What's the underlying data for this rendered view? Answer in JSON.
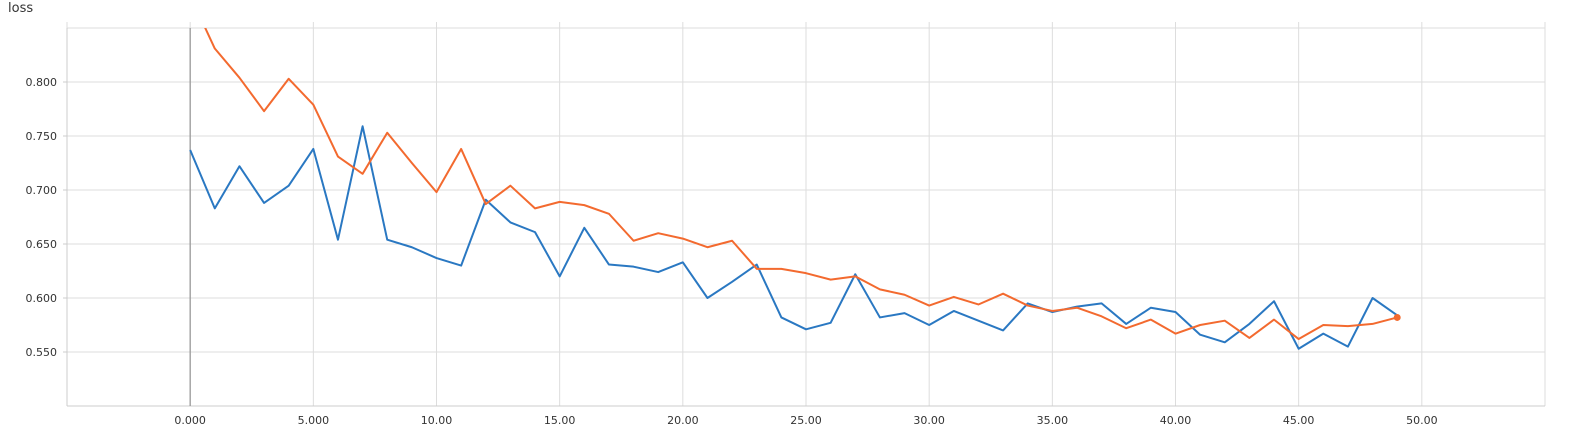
{
  "chart_data": {
    "type": "line",
    "title": "loss",
    "xlabel": "",
    "ylabel": "",
    "xlim": [
      -5,
      55
    ],
    "ylim": [
      0.5,
      0.85
    ],
    "x_ticks": [
      "0.000",
      "5.000",
      "10.00",
      "15.00",
      "20.00",
      "25.00",
      "30.00",
      "35.00",
      "40.00",
      "45.00",
      "50.00"
    ],
    "y_ticks": [
      "0.800",
      "0.750",
      "0.700",
      "0.650",
      "0.600",
      "0.550"
    ],
    "grid": true,
    "legend": "none",
    "colors": {
      "series_blue": "#2a78c2",
      "series_orange": "#f36a2f",
      "grid": "#dddddd",
      "axis": "#999999"
    },
    "x": [
      0,
      1,
      2,
      3,
      4,
      5,
      6,
      7,
      8,
      9,
      10,
      11,
      12,
      13,
      14,
      15,
      16,
      17,
      18,
      19,
      20,
      21,
      22,
      23,
      24,
      25,
      26,
      27,
      28,
      29,
      30,
      31,
      32,
      33,
      34,
      35,
      36,
      37,
      38,
      39,
      40,
      41,
      42,
      43,
      44,
      45,
      46,
      47,
      48,
      49
    ],
    "series": [
      {
        "color": "#2a78c2",
        "values": [
          0.737,
          0.683,
          0.722,
          0.688,
          0.704,
          0.738,
          0.654,
          0.759,
          0.654,
          0.647,
          0.637,
          0.63,
          0.691,
          0.67,
          0.661,
          0.62,
          0.665,
          0.631,
          0.629,
          0.624,
          0.633,
          0.6,
          0.615,
          0.631,
          0.582,
          0.571,
          0.577,
          0.622,
          0.582,
          0.586,
          0.575,
          0.588,
          0.579,
          0.57,
          0.595,
          0.587,
          0.592,
          0.595,
          0.576,
          0.591,
          0.587,
          0.566,
          0.559,
          0.576,
          0.597,
          0.553,
          0.567,
          0.555,
          0.6,
          0.584
        ]
      },
      {
        "color": "#f36a2f",
        "values": [
          0.88,
          0.831,
          0.804,
          0.773,
          0.803,
          0.779,
          0.731,
          0.715,
          0.753,
          0.725,
          0.698,
          0.738,
          0.687,
          0.704,
          0.683,
          0.689,
          0.686,
          0.678,
          0.653,
          0.66,
          0.655,
          0.647,
          0.653,
          0.627,
          0.627,
          0.623,
          0.617,
          0.62,
          0.608,
          0.603,
          0.593,
          0.601,
          0.594,
          0.604,
          0.593,
          0.588,
          0.591,
          0.583,
          0.572,
          0.58,
          0.567,
          0.575,
          0.579,
          0.563,
          0.58,
          0.562,
          0.575,
          0.574,
          0.576,
          0.582
        ]
      }
    ]
  }
}
